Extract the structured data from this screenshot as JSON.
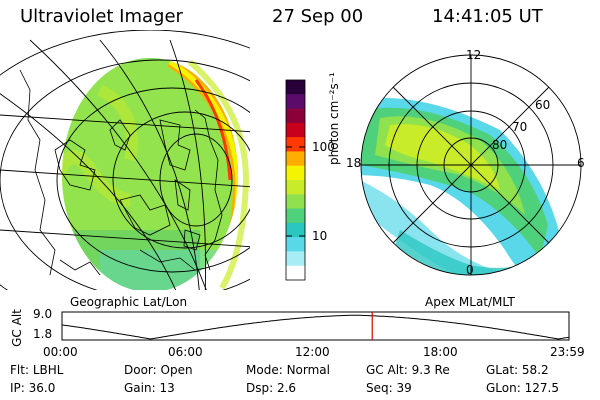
{
  "header": {
    "title": "Ultraviolet Imager",
    "date": "27 Sep 00",
    "time": "14:41:05 UT"
  },
  "colorbar": {
    "ticks": [
      "100",
      "10"
    ],
    "unit": "photon cm⁻²s⁻¹",
    "colors": [
      "#2a003a",
      "#5b0b6a",
      "#8b0038",
      "#c8001e",
      "#ff3a00",
      "#ffae00",
      "#f4f300",
      "#c8ec2a",
      "#8fe24e",
      "#4fd07a",
      "#2ac7c1",
      "#58d8e8",
      "#a8ecf5",
      "#ffffff"
    ]
  },
  "panels": {
    "geo_label": "Geographic Lat/Lon",
    "apex_label": "Apex MLat/MLT",
    "polar": {
      "mlt": [
        "12",
        "18",
        "6",
        "0"
      ],
      "mlat": [
        "80",
        "70",
        "60"
      ]
    }
  },
  "timeline": {
    "ylabel": "GC Alt",
    "yticks": [
      "9.0",
      "1.8"
    ],
    "xticks": [
      "00:00",
      "06:00",
      "12:00",
      "18:00",
      "23:59"
    ],
    "current_time_hours": 14.685,
    "marker_color": "#e00000"
  },
  "info": {
    "row1": [
      {
        "label": "Flt:",
        "value": "LBHL"
      },
      {
        "label": "Door:",
        "value": "Open"
      },
      {
        "label": "Mode:",
        "value": "Normal"
      },
      {
        "label": "GC Alt:",
        "value": "9.3 Re"
      },
      {
        "label": "GLat:",
        "value": "58.2"
      }
    ],
    "row2": [
      {
        "label": "IP:",
        "value": "36.0"
      },
      {
        "label": "Gain:",
        "value": "13"
      },
      {
        "label": "Dsp:",
        "value": "2.6"
      },
      {
        "label": "Seq:",
        "value": "39"
      },
      {
        "label": "GLon:",
        "value": "127.5"
      }
    ]
  }
}
